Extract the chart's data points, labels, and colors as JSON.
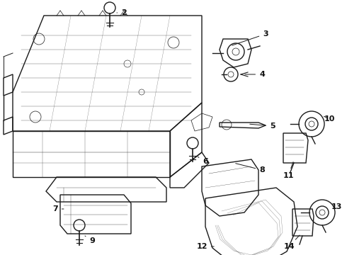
{
  "bg_color": "#ffffff",
  "line_color": "#1a1a1a",
  "lw_main": 1.0,
  "lw_thin": 0.5,
  "figsize": [
    4.9,
    3.6
  ],
  "dpi": 100
}
